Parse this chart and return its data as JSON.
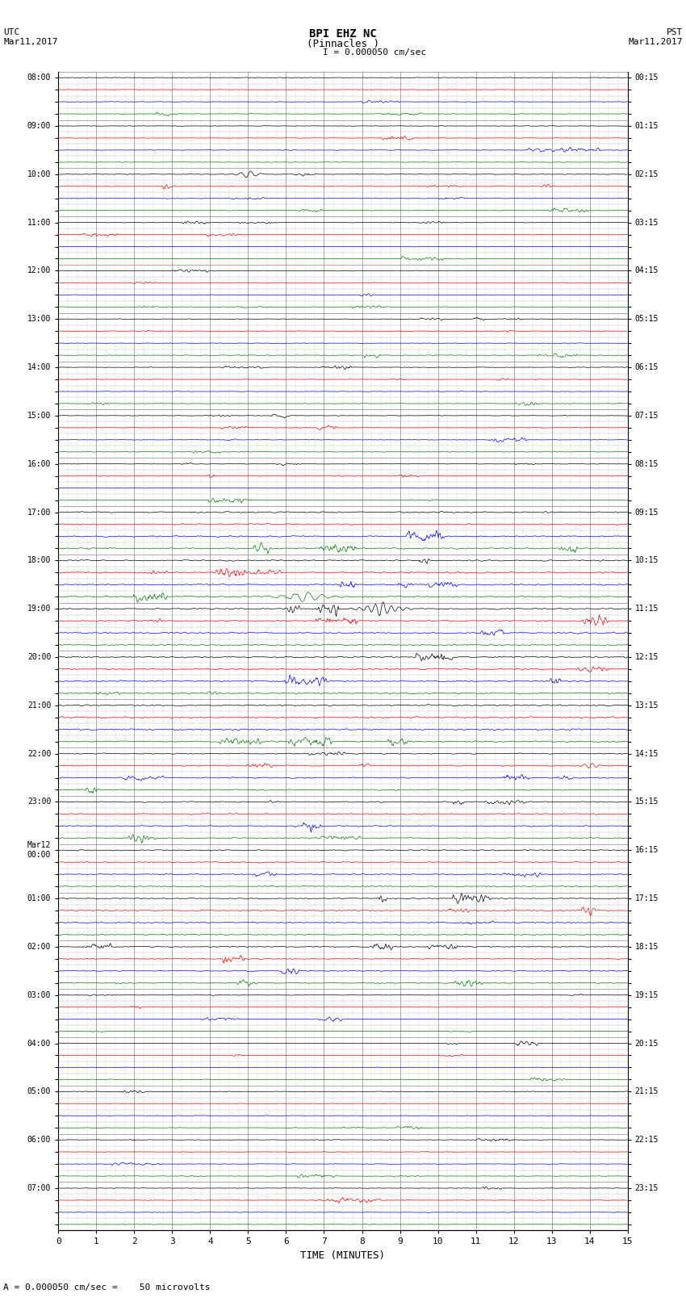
{
  "title_line1": "BPI EHZ NC",
  "title_line2": "(Pinnacles )",
  "title_line3": "I = 0.000050 cm/sec",
  "left_header": "UTC\nMar11,2017",
  "right_header": "PST\nMar11,2017",
  "xlabel": "TIME (MINUTES)",
  "footer_text": "= 0.000050 cm/sec =    50 microvolts",
  "xlim": [
    0,
    15
  ],
  "xticks": [
    0,
    1,
    2,
    3,
    4,
    5,
    6,
    7,
    8,
    9,
    10,
    11,
    12,
    13,
    14,
    15
  ],
  "num_rows": 96,
  "colors_cycle": [
    "black",
    "red",
    "blue",
    "green"
  ],
  "left_labels": [
    "08:00",
    "",
    "",
    "",
    "09:00",
    "",
    "",
    "",
    "10:00",
    "",
    "",
    "",
    "11:00",
    "",
    "",
    "",
    "12:00",
    "",
    "",
    "",
    "13:00",
    "",
    "",
    "",
    "14:00",
    "",
    "",
    "",
    "15:00",
    "",
    "",
    "",
    "16:00",
    "",
    "",
    "",
    "17:00",
    "",
    "",
    "",
    "18:00",
    "",
    "",
    "",
    "19:00",
    "",
    "",
    "",
    "20:00",
    "",
    "",
    "",
    "21:00",
    "",
    "",
    "",
    "22:00",
    "",
    "",
    "",
    "23:00",
    "",
    "",
    "",
    "Mar12\n00:00",
    "",
    "",
    "",
    "01:00",
    "",
    "",
    "",
    "02:00",
    "",
    "",
    "",
    "03:00",
    "",
    "",
    "",
    "04:00",
    "",
    "",
    "",
    "05:00",
    "",
    "",
    "",
    "06:00",
    "",
    "",
    "",
    "07:00",
    "",
    "",
    ""
  ],
  "right_labels": [
    "00:15",
    "",
    "",
    "",
    "01:15",
    "",
    "",
    "",
    "02:15",
    "",
    "",
    "",
    "03:15",
    "",
    "",
    "",
    "04:15",
    "",
    "",
    "",
    "05:15",
    "",
    "",
    "",
    "06:15",
    "",
    "",
    "",
    "07:15",
    "",
    "",
    "",
    "08:15",
    "",
    "",
    "",
    "09:15",
    "",
    "",
    "",
    "10:15",
    "",
    "",
    "",
    "11:15",
    "",
    "",
    "",
    "12:15",
    "",
    "",
    "",
    "13:15",
    "",
    "",
    "",
    "14:15",
    "",
    "",
    "",
    "15:15",
    "",
    "",
    "",
    "16:15",
    "",
    "",
    "",
    "17:15",
    "",
    "",
    "",
    "18:15",
    "",
    "",
    "",
    "19:15",
    "",
    "",
    "",
    "20:15",
    "",
    "",
    "",
    "21:15",
    "",
    "",
    "",
    "22:15",
    "",
    "",
    "",
    "23:15",
    "",
    "",
    ""
  ],
  "grid_color": "#aaaaaa",
  "major_grid_color": "#888888",
  "bg_color": "#ffffff",
  "fig_width": 8.5,
  "fig_height": 16.13
}
